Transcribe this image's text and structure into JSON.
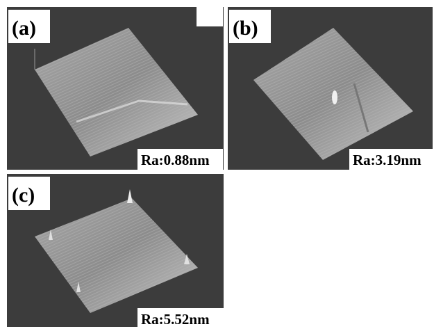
{
  "panels": [
    {
      "label": "(a)",
      "roughness": "Ra:0.88nm"
    },
    {
      "label": "(b)",
      "roughness": "Ra:3.19nm"
    },
    {
      "label": "(c)",
      "roughness": "Ra:5.52nm"
    }
  ]
}
